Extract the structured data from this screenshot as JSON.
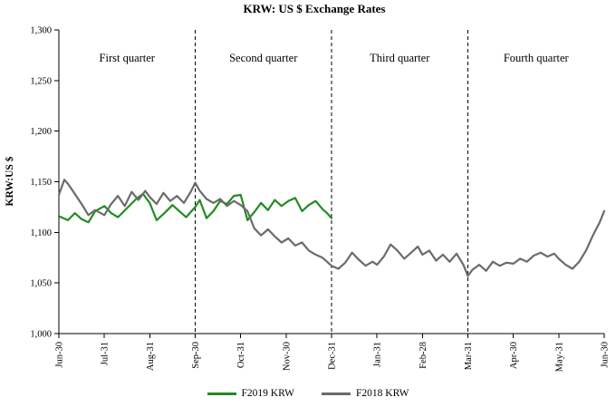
{
  "chart_data": {
    "type": "line",
    "title": "KRW: US $ Exchange Rates",
    "ylabel": "KRW:US $",
    "xlabel": "",
    "grid": false,
    "legend_position": "bottom",
    "xlim": [
      0,
      12
    ],
    "ylim": [
      1000,
      1300
    ],
    "x_tick_labels": [
      "Jun-30",
      "Jul-31",
      "Aug-31",
      "Sep-30",
      "Oct-31",
      "Nov-30",
      "Dec-31",
      "Jan-31",
      "Feb-28",
      "Mar-31",
      "Apr-30",
      "May-31",
      "Jun-30"
    ],
    "y_ticks": [
      {
        "value": 1000,
        "label": "1,000"
      },
      {
        "value": 1050,
        "label": "1,050"
      },
      {
        "value": 1100,
        "label": "1,100"
      },
      {
        "value": 1150,
        "label": "1,150"
      },
      {
        "value": 1200,
        "label": "1,200"
      },
      {
        "value": 1250,
        "label": "1,250"
      },
      {
        "value": 1300,
        "label": "1,300"
      }
    ],
    "quarter_dividers_x": [
      3,
      6,
      9
    ],
    "quarter_labels": [
      {
        "label": "First quarter",
        "x": 1.5
      },
      {
        "label": "Second quarter",
        "x": 4.5
      },
      {
        "label": "Third quarter",
        "x": 7.5
      },
      {
        "label": "Fourth quarter",
        "x": 10.5
      }
    ],
    "series": [
      {
        "name": "F2019 KRW",
        "color": "#228B22",
        "points": [
          [
            0,
            1116
          ],
          [
            0.2,
            1112
          ],
          [
            0.35,
            1119
          ],
          [
            0.5,
            1113
          ],
          [
            0.65,
            1110
          ],
          [
            0.8,
            1121
          ],
          [
            1,
            1126
          ],
          [
            1.15,
            1119
          ],
          [
            1.3,
            1115
          ],
          [
            1.5,
            1124
          ],
          [
            1.7,
            1133
          ],
          [
            1.85,
            1138
          ],
          [
            2,
            1129
          ],
          [
            2.15,
            1112
          ],
          [
            2.3,
            1118
          ],
          [
            2.5,
            1127
          ],
          [
            2.65,
            1121
          ],
          [
            2.8,
            1115
          ],
          [
            3,
            1125
          ],
          [
            3.1,
            1132
          ],
          [
            3.25,
            1114
          ],
          [
            3.4,
            1121
          ],
          [
            3.55,
            1131
          ],
          [
            3.7,
            1128
          ],
          [
            3.85,
            1136
          ],
          [
            4,
            1137
          ],
          [
            4.15,
            1112
          ],
          [
            4.3,
            1120
          ],
          [
            4.45,
            1129
          ],
          [
            4.6,
            1122
          ],
          [
            4.75,
            1132
          ],
          [
            4.9,
            1126
          ],
          [
            5.05,
            1131
          ],
          [
            5.2,
            1134
          ],
          [
            5.35,
            1121
          ],
          [
            5.5,
            1127
          ],
          [
            5.65,
            1131
          ],
          [
            5.8,
            1123
          ],
          [
            5.9,
            1119
          ],
          [
            6,
            1114
          ]
        ]
      },
      {
        "name": "F2018 KRW",
        "color": "#6b6b6b",
        "points": [
          [
            0,
            1137
          ],
          [
            0.12,
            1152
          ],
          [
            0.2,
            1148
          ],
          [
            0.35,
            1138
          ],
          [
            0.5,
            1128
          ],
          [
            0.65,
            1117
          ],
          [
            0.8,
            1122
          ],
          [
            1,
            1117
          ],
          [
            1.15,
            1128
          ],
          [
            1.3,
            1136
          ],
          [
            1.45,
            1126
          ],
          [
            1.6,
            1140
          ],
          [
            1.75,
            1132
          ],
          [
            1.9,
            1141
          ],
          [
            2,
            1135
          ],
          [
            2.15,
            1128
          ],
          [
            2.3,
            1139
          ],
          [
            2.45,
            1131
          ],
          [
            2.6,
            1136
          ],
          [
            2.75,
            1129
          ],
          [
            2.9,
            1140
          ],
          [
            3,
            1149
          ],
          [
            3.1,
            1141
          ],
          [
            3.25,
            1133
          ],
          [
            3.4,
            1129
          ],
          [
            3.55,
            1133
          ],
          [
            3.7,
            1126
          ],
          [
            3.85,
            1131
          ],
          [
            4,
            1127
          ],
          [
            4.15,
            1121
          ],
          [
            4.3,
            1104
          ],
          [
            4.45,
            1097
          ],
          [
            4.6,
            1103
          ],
          [
            4.75,
            1096
          ],
          [
            4.9,
            1090
          ],
          [
            5.05,
            1094
          ],
          [
            5.2,
            1087
          ],
          [
            5.35,
            1090
          ],
          [
            5.5,
            1082
          ],
          [
            5.65,
            1078
          ],
          [
            5.8,
            1075
          ],
          [
            6,
            1067
          ],
          [
            6.15,
            1064
          ],
          [
            6.3,
            1070
          ],
          [
            6.45,
            1080
          ],
          [
            6.6,
            1073
          ],
          [
            6.75,
            1067
          ],
          [
            6.9,
            1071
          ],
          [
            7,
            1068
          ],
          [
            7.15,
            1076
          ],
          [
            7.3,
            1088
          ],
          [
            7.45,
            1082
          ],
          [
            7.6,
            1074
          ],
          [
            7.75,
            1080
          ],
          [
            7.9,
            1086
          ],
          [
            8,
            1078
          ],
          [
            8.15,
            1082
          ],
          [
            8.3,
            1072
          ],
          [
            8.45,
            1078
          ],
          [
            8.6,
            1071
          ],
          [
            8.75,
            1079
          ],
          [
            8.9,
            1068
          ],
          [
            9,
            1057
          ],
          [
            9.1,
            1063
          ],
          [
            9.25,
            1068
          ],
          [
            9.4,
            1062
          ],
          [
            9.55,
            1071
          ],
          [
            9.7,
            1067
          ],
          [
            9.85,
            1070
          ],
          [
            10,
            1069
          ],
          [
            10.15,
            1074
          ],
          [
            10.3,
            1071
          ],
          [
            10.45,
            1077
          ],
          [
            10.6,
            1080
          ],
          [
            10.75,
            1076
          ],
          [
            10.9,
            1079
          ],
          [
            11,
            1074
          ],
          [
            11.15,
            1068
          ],
          [
            11.3,
            1064
          ],
          [
            11.45,
            1071
          ],
          [
            11.6,
            1082
          ],
          [
            11.75,
            1097
          ],
          [
            11.9,
            1110
          ],
          [
            12,
            1121
          ]
        ]
      }
    ]
  }
}
